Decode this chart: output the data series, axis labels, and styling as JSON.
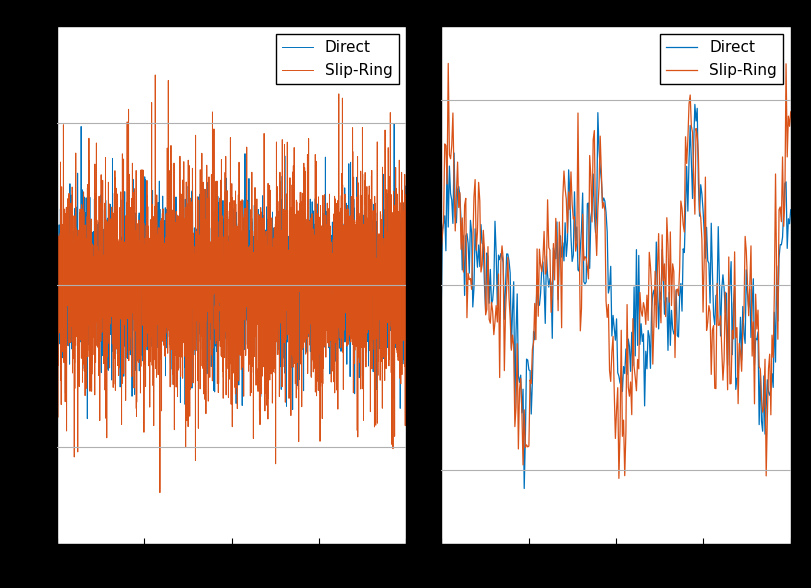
{
  "color_direct": "#0072BD",
  "color_slipring": "#D95319",
  "line_width": 0.7,
  "legend_fontsize": 11,
  "background_color": "#ffffff",
  "grid_color": "#b0b0b0",
  "figure_bg": "#000000",
  "n_full": 3000,
  "n_zoom": 300,
  "seed_direct": 42,
  "seed_slipring": 99,
  "ylim_full": [
    -1.6,
    1.6
  ],
  "ylim_zoom": [
    -1.4,
    1.4
  ],
  "yticks_full": [
    -1.0,
    0.0,
    1.0
  ],
  "yticks_zoom": [
    -1.0,
    0.0,
    1.0
  ],
  "xticks_full": [
    0.0,
    0.25,
    0.5,
    0.75,
    1.0
  ],
  "xticks_zoom": [
    0.0,
    0.25,
    0.5,
    0.75,
    1.0
  ]
}
